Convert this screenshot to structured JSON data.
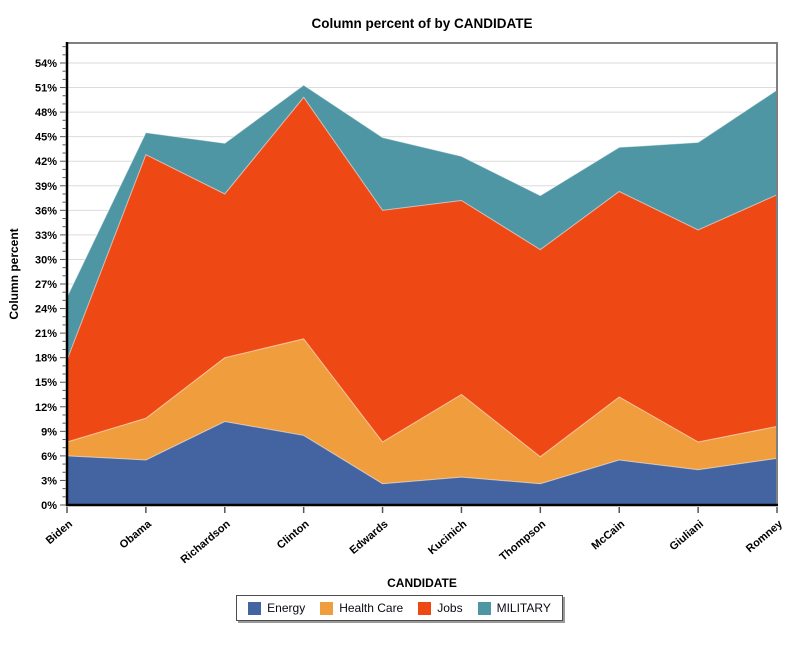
{
  "chart_title": "Column percent of  by CANDIDATE",
  "x_axis_title": "CANDIDATE",
  "y_axis_title": "Column percent",
  "y_tick_suffix": "%",
  "colors": {
    "energy": "#4464A1",
    "health_care": "#F09D3E",
    "jobs": "#EE4814",
    "military": "#4F96A4",
    "gridline": "#DBDBDB",
    "frame_light": "#7F7F7F",
    "frame_dark": "#000000",
    "tick": "#555555",
    "boundary_highlight": "rgba(255,255,255,0.55)"
  },
  "chart_data": {
    "type": "area",
    "stacked": true,
    "title": "Column percent of  by CANDIDATE",
    "xlabel": "CANDIDATE",
    "ylabel": "Column percent",
    "categories": [
      "Biden",
      "Obama",
      "Richardson",
      "Clinton",
      "Edwards",
      "Kucinich",
      "Thompson",
      "McCain",
      "Giuliani",
      "Romney"
    ],
    "series": [
      {
        "name": "Energy",
        "color": "#4464A1",
        "values": [
          6.0,
          5.5,
          10.2,
          8.5,
          2.6,
          3.4,
          2.6,
          5.5,
          4.3,
          5.7
        ]
      },
      {
        "name": "Health Care",
        "color": "#F09D3E",
        "values": [
          1.7,
          5.1,
          7.8,
          11.8,
          5.1,
          10.1,
          3.3,
          7.7,
          3.4,
          3.9
        ]
      },
      {
        "name": "Jobs",
        "color": "#EE4814",
        "values": [
          10.0,
          32.2,
          20.0,
          29.5,
          28.3,
          23.7,
          25.3,
          25.1,
          25.9,
          28.3
        ]
      },
      {
        "name": "MILITARY",
        "color": "#4F96A4",
        "values": [
          7.7,
          2.7,
          6.2,
          1.5,
          8.9,
          5.4,
          6.6,
          5.4,
          10.7,
          12.8
        ]
      }
    ],
    "cumulative_totals": [
      25.4,
      45.5,
      44.2,
      51.3,
      44.9,
      42.6,
      37.8,
      43.7,
      44.3,
      50.7
    ],
    "y_ticks": [
      0,
      3,
      6,
      9,
      12,
      15,
      18,
      21,
      24,
      27,
      30,
      33,
      36,
      39,
      42,
      45,
      48,
      51,
      54
    ],
    "ylim": [
      0,
      56.5
    ],
    "minor_tick_step": 1,
    "grid": true,
    "legend_position": "bottom"
  }
}
